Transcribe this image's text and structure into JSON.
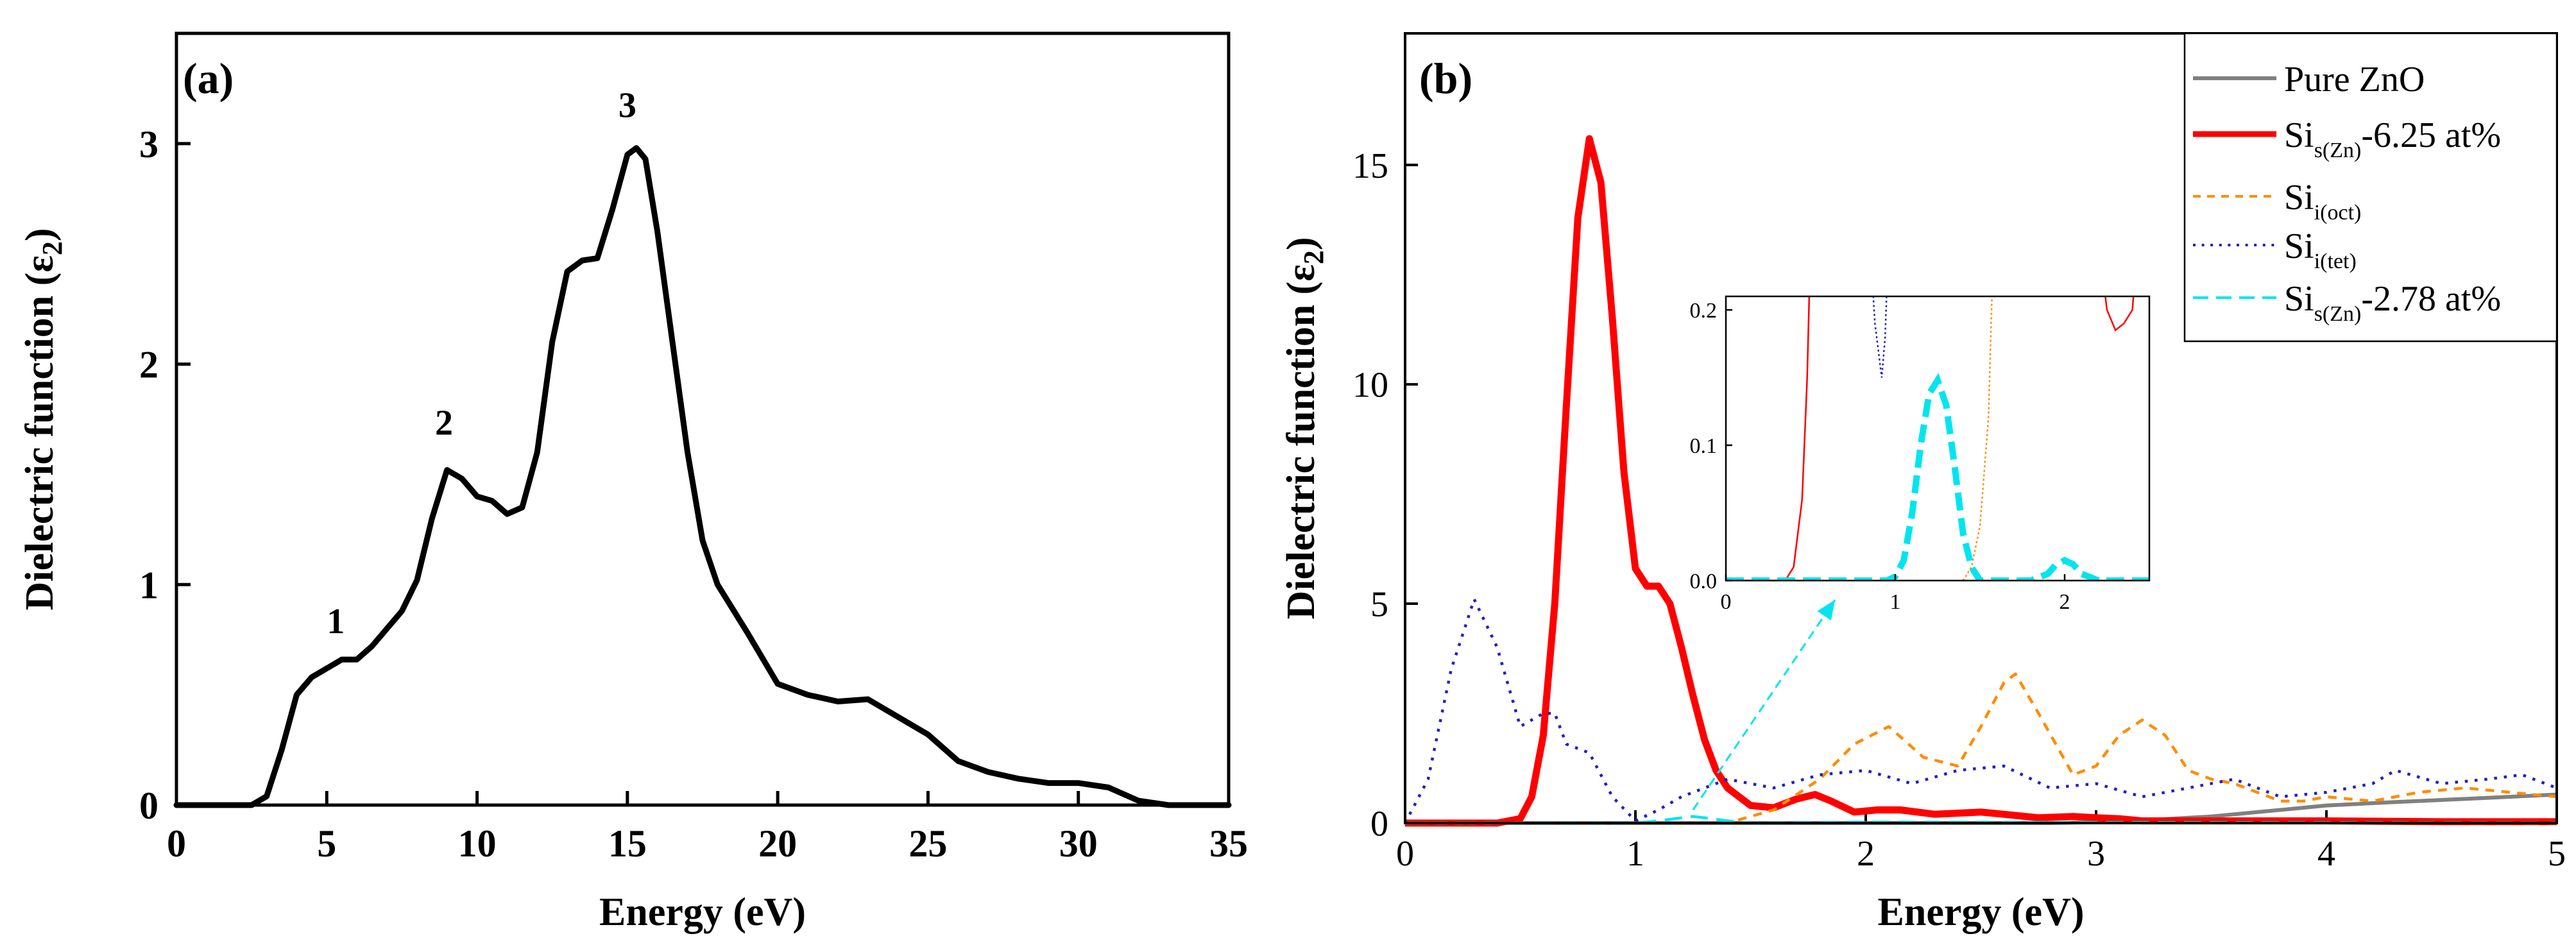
{
  "chart_data": [
    {
      "panel_label": "(a)",
      "type": "line",
      "xlabel": "Energy (eV)",
      "ylabel_main": "Dielectric function (ε",
      "ylabel_sub": "2",
      "ylabel_tail": ")",
      "xlim": [
        0,
        35
      ],
      "ylim": [
        0,
        3.5
      ],
      "xticks": [
        0,
        5,
        10,
        15,
        20,
        25,
        30,
        35
      ],
      "yticks": [
        0,
        1,
        2,
        3
      ],
      "series": [
        {
          "name": "ε2",
          "color": "#000000",
          "x": [
            0,
            2.5,
            3.0,
            3.5,
            4.0,
            4.5,
            5.0,
            5.5,
            6.0,
            6.5,
            7.0,
            7.5,
            8.0,
            8.5,
            9.0,
            9.5,
            10.0,
            10.5,
            11.0,
            11.5,
            12.0,
            12.5,
            13.0,
            13.5,
            14.0,
            14.5,
            15.0,
            15.3,
            15.6,
            16.0,
            16.5,
            17.0,
            17.5,
            18.0,
            19.0,
            20.0,
            21.0,
            22.0,
            23.0,
            24.0,
            25.0,
            26.0,
            27.0,
            28.0,
            29.0,
            30.0,
            31.0,
            32.0,
            33.0,
            35.0
          ],
          "y": [
            0,
            0,
            0.04,
            0.25,
            0.5,
            0.58,
            0.62,
            0.66,
            0.66,
            0.72,
            0.8,
            0.88,
            1.02,
            1.3,
            1.52,
            1.48,
            1.4,
            1.38,
            1.32,
            1.35,
            1.6,
            2.1,
            2.42,
            2.47,
            2.48,
            2.7,
            2.95,
            2.98,
            2.93,
            2.6,
            2.1,
            1.6,
            1.2,
            1.0,
            0.78,
            0.55,
            0.5,
            0.47,
            0.48,
            0.4,
            0.32,
            0.2,
            0.15,
            0.12,
            0.1,
            0.1,
            0.08,
            0.02,
            0,
            0
          ]
        }
      ],
      "annotations": [
        {
          "text": "1",
          "x": 5.3,
          "y": 0.78
        },
        {
          "text": "2",
          "x": 8.9,
          "y": 1.68
        },
        {
          "text": "3",
          "x": 15.0,
          "y": 3.12
        }
      ]
    },
    {
      "panel_label": "(b)",
      "type": "line",
      "xlabel": "Energy (eV)",
      "ylabel_main": "Dielectric function (ε",
      "ylabel_sub": "2",
      "ylabel_tail": ")",
      "xlim": [
        0,
        5
      ],
      "ylim": [
        0,
        18
      ],
      "xticks": [
        0,
        1,
        2,
        3,
        4,
        5
      ],
      "yticks": [
        0,
        5,
        10,
        15
      ],
      "legend_position": "top-right",
      "series": [
        {
          "name": "Pure ZnO",
          "label_main": "Pure ZnO",
          "label_sub": "",
          "label_tail": "",
          "color": "#808080",
          "dash": "solid",
          "x": [
            0,
            2.8,
            3.0,
            3.2,
            3.5,
            3.8,
            4.0,
            4.3,
            4.6,
            4.8,
            5.0
          ],
          "y": [
            0,
            0,
            0.02,
            0.06,
            0.15,
            0.3,
            0.4,
            0.48,
            0.55,
            0.6,
            0.65
          ]
        },
        {
          "name": "Si s(Zn) -6.25 at%",
          "label_main": "Si",
          "label_sub": "s(Zn)",
          "label_tail": "-6.25 at%",
          "color": "#ff0000",
          "dash": "solid",
          "x": [
            0,
            0.4,
            0.5,
            0.55,
            0.6,
            0.65,
            0.7,
            0.75,
            0.8,
            0.85,
            0.9,
            0.95,
            1.0,
            1.05,
            1.1,
            1.15,
            1.2,
            1.25,
            1.3,
            1.35,
            1.4,
            1.5,
            1.6,
            1.7,
            1.78,
            1.85,
            1.95,
            2.05,
            2.15,
            2.3,
            2.5,
            2.6,
            2.75,
            2.9,
            3.0,
            3.1,
            3.2,
            3.5,
            4.0,
            4.5,
            5.0
          ],
          "y": [
            0,
            0,
            0.1,
            0.6,
            2.0,
            5.0,
            9.5,
            13.8,
            15.6,
            14.6,
            11.5,
            8.0,
            5.8,
            5.4,
            5.4,
            5.0,
            4.0,
            2.9,
            1.9,
            1.2,
            0.8,
            0.4,
            0.35,
            0.55,
            0.65,
            0.5,
            0.25,
            0.3,
            0.3,
            0.2,
            0.25,
            0.2,
            0.12,
            0.15,
            0.12,
            0.1,
            0.05,
            0.05,
            0.05,
            0.03,
            0.03
          ]
        },
        {
          "name": "Si i(oct)",
          "label_main": "Si",
          "label_sub": "i(oct)",
          "label_tail": "",
          "color": "#ff8c00",
          "dash": "dash",
          "x": [
            0,
            1.4,
            1.6,
            1.8,
            1.95,
            2.1,
            2.25,
            2.4,
            2.5,
            2.6,
            2.65,
            2.75,
            2.9,
            3.0,
            3.1,
            3.2,
            3.3,
            3.4,
            3.5,
            3.6,
            3.7,
            3.8,
            3.9,
            4.0,
            4.2,
            4.4,
            4.6,
            4.8,
            5.0
          ],
          "y": [
            0,
            0,
            0.3,
            1.0,
            1.8,
            2.2,
            1.5,
            1.3,
            2.2,
            3.2,
            3.4,
            2.5,
            1.1,
            1.3,
            2.0,
            2.35,
            2.0,
            1.2,
            1.0,
            0.9,
            0.7,
            0.5,
            0.5,
            0.6,
            0.5,
            0.7,
            0.8,
            0.7,
            0.6
          ]
        },
        {
          "name": "Si i(tet)",
          "label_main": "Si",
          "label_sub": "i(tet)",
          "label_tail": "",
          "color": "#2020c0",
          "dash": "dot",
          "x": [
            0,
            0.1,
            0.2,
            0.3,
            0.4,
            0.5,
            0.6,
            0.65,
            0.7,
            0.8,
            0.9,
            1.0,
            1.1,
            1.2,
            1.4,
            1.6,
            1.8,
            2.0,
            2.2,
            2.4,
            2.6,
            2.8,
            3.0,
            3.2,
            3.4,
            3.6,
            3.8,
            4.0,
            4.2,
            4.3,
            4.5,
            4.7,
            4.85,
            5.0
          ],
          "y": [
            0,
            1.0,
            3.5,
            5.1,
            4.0,
            2.2,
            2.5,
            2.5,
            1.8,
            1.6,
            0.6,
            0.05,
            0.3,
            0.6,
            1.0,
            0.8,
            1.1,
            1.2,
            0.9,
            1.2,
            1.3,
            0.8,
            0.9,
            0.6,
            0.8,
            1.0,
            0.6,
            0.7,
            0.9,
            1.2,
            0.9,
            1.0,
            1.1,
            0.8
          ]
        },
        {
          "name": "Si s(Zn) -2.78 at%",
          "label_main": "Si",
          "label_sub": "s(Zn)",
          "label_tail": "-2.78 at%",
          "color": "#00e5ee",
          "dash": "longdash",
          "x": [
            0,
            1.0,
            1.1,
            1.2,
            1.25,
            1.3,
            1.4,
            1.5,
            2.0,
            5.0
          ],
          "y": [
            0,
            0,
            0.05,
            0.12,
            0.15,
            0.12,
            0.05,
            0,
            0.02,
            0
          ]
        }
      ],
      "inset": {
        "xlim": [
          0,
          2.5
        ],
        "ylim": [
          0,
          0.21
        ],
        "xticks": [
          0,
          1,
          2
        ],
        "yticks": [
          0.0,
          0.1,
          0.2
        ],
        "ytick_labels": [
          "0.0",
          "0.1",
          "0.2"
        ],
        "series": [
          {
            "ref": "Si s(Zn) -6.25 at%",
            "color": "#ff0000",
            "dash": "solid",
            "x": [
              0,
              0.35,
              0.4,
              0.45,
              0.48,
              0.5,
              2.2,
              2.25,
              2.3,
              2.35,
              2.4,
              2.43
            ],
            "y": [
              0,
              0,
              0.01,
              0.06,
              0.15,
              0.25,
              0.25,
              0.2,
              0.185,
              0.19,
              0.2,
              0.25
            ]
          },
          {
            "ref": "Si i(tet)",
            "color": "#2020c0",
            "dash": "dot",
            "x": [
              0.85,
              0.88,
              0.9,
              0.92,
              0.94,
              0.96
            ],
            "y": [
              0.25,
              0.19,
              0.17,
              0.15,
              0.18,
              0.25
            ]
          },
          {
            "ref": "Si i(oct)",
            "color": "#ff8c00",
            "dash": "dot",
            "x": [
              1.4,
              1.45,
              1.5,
              1.55,
              1.58
            ],
            "y": [
              0,
              0.01,
              0.04,
              0.12,
              0.25
            ]
          },
          {
            "ref": "Si s(Zn) -2.78 at%",
            "color": "#00e5ee",
            "dash": "longdash",
            "x": [
              0,
              0.95,
              1.0,
              1.05,
              1.1,
              1.15,
              1.2,
              1.25,
              1.3,
              1.35,
              1.4,
              1.45,
              1.5,
              1.8,
              1.9,
              1.95,
              2.0,
              2.05,
              2.1,
              2.2,
              2.5
            ],
            "y": [
              0,
              0,
              0.003,
              0.015,
              0.05,
              0.1,
              0.138,
              0.148,
              0.13,
              0.085,
              0.035,
              0.01,
              0,
              0,
              0.005,
              0.012,
              0.015,
              0.012,
              0.005,
              0,
              0
            ]
          }
        ]
      }
    }
  ]
}
